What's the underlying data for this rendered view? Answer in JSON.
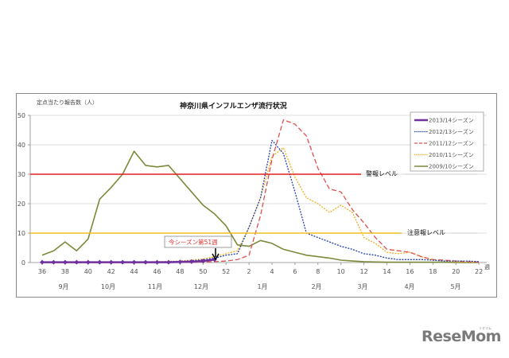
{
  "chart_data": {
    "type": "line",
    "title": "神奈川県インフルエンザ流行状況",
    "ylabel": "定点当たり報告数（人）",
    "xlabel": "週",
    "ylim": [
      0,
      50
    ],
    "yticks": [
      0,
      10,
      20,
      30,
      40,
      50
    ],
    "grid": true,
    "legend_position": "upper right",
    "x": [
      36,
      37,
      38,
      39,
      40,
      41,
      42,
      43,
      44,
      45,
      46,
      47,
      48,
      49,
      50,
      51,
      52,
      1,
      2,
      3,
      4,
      5,
      6,
      7,
      8,
      9,
      10,
      11,
      12,
      13,
      14,
      15,
      16,
      17,
      18,
      19,
      20,
      21,
      22
    ],
    "xtick_labels": [
      "36",
      "38",
      "40",
      "42",
      "44",
      "46",
      "48",
      "50",
      "52",
      "2",
      "4",
      "6",
      "8",
      "10",
      "12",
      "14",
      "16",
      "18",
      "20",
      "22"
    ],
    "month_labels": [
      "9月",
      "10月",
      "11月",
      "12月",
      "1月",
      "2月",
      "3月",
      "4月",
      "5月"
    ],
    "series": [
      {
        "name": "2013/14シーズン",
        "color": "#7030a0",
        "style": "solid-thick-markers",
        "values": [
          0.1,
          0.1,
          0.1,
          0.1,
          0.1,
          0.1,
          0.1,
          0.1,
          0.1,
          0.1,
          0.1,
          0.1,
          0.2,
          0.3,
          0.5,
          1.0
        ]
      },
      {
        "name": "2012/13シーズン",
        "color": "#2040b0",
        "style": "dotted",
        "values": [
          0.1,
          0.1,
          0.1,
          0.1,
          0.1,
          0.1,
          0.1,
          0.1,
          0.1,
          0.2,
          0.2,
          0.3,
          0.4,
          0.6,
          0.9,
          1.5,
          2.5,
          3.0,
          12.0,
          22.0,
          41.5,
          37.0,
          24.0,
          10.0,
          8.5,
          7.0,
          5.5,
          4.5,
          3.0,
          2.5,
          1.5,
          1.0,
          1.0,
          1.0,
          0.8,
          0.5,
          0.5,
          0.5,
          0.3
        ]
      },
      {
        "name": "2011/12シーズン",
        "color": "#e05050",
        "style": "dashed",
        "values": [
          0.0,
          0.0,
          0.0,
          0.0,
          0.0,
          0.0,
          0.0,
          0.0,
          0.0,
          0.0,
          0.0,
          0.1,
          0.1,
          0.1,
          0.2,
          0.3,
          0.5,
          1.0,
          2.5,
          16.0,
          35.0,
          48.5,
          47.0,
          43.0,
          32.0,
          25.0,
          24.0,
          18.0,
          13.5,
          8.5,
          4.5,
          4.0,
          3.5,
          2.0,
          1.0,
          0.8,
          0.5,
          0.3,
          0.2
        ]
      },
      {
        "name": "2010/11シーズン",
        "color": "#f0b020",
        "style": "dotted",
        "values": [
          0.0,
          0.0,
          0.0,
          0.0,
          0.1,
          0.1,
          0.1,
          0.1,
          0.1,
          0.2,
          0.3,
          0.4,
          0.5,
          0.8,
          1.2,
          2.0,
          3.0,
          4.0,
          12.0,
          22.0,
          36.0,
          39.0,
          29.0,
          22.0,
          20.0,
          17.0,
          19.5,
          17.0,
          8.5,
          6.5,
          3.5,
          3.0,
          3.5,
          2.0,
          0.8,
          0.5,
          0.3,
          0.2,
          0.1
        ]
      },
      {
        "name": "2009/10シーズン",
        "color": "#7a8a3a",
        "style": "solid",
        "values": [
          2.5,
          4.0,
          7.0,
          4.0,
          8.0,
          21.5,
          25.5,
          30.0,
          37.8,
          33.0,
          32.5,
          33.0,
          28.5,
          24.0,
          19.5,
          16.5,
          12.5,
          6.0,
          5.5,
          7.5,
          6.5,
          4.5,
          3.5,
          2.5,
          2.0,
          1.5,
          0.8,
          0.5,
          0.3,
          0.2,
          0.1,
          0.1,
          0.1,
          0.1,
          0.1,
          0.1,
          0.0,
          0.0,
          0.0
        ]
      }
    ],
    "reference_lines": [
      {
        "name": "警報レベル",
        "value": 30,
        "color": "#e02020"
      },
      {
        "name": "注意報レベル",
        "value": 10,
        "color": "#f0c020"
      }
    ],
    "annotations": [
      {
        "text": "今シーズン第51週",
        "x": 51,
        "y": 1.0
      }
    ]
  },
  "labels": {
    "title": "神奈川県インフルエンザ流行状況",
    "ylabel": "定点当たり報告数（人）",
    "week_unit": "週",
    "alarm_level": "警報レベル",
    "warning_level": "注意報レベル",
    "annotation": "今シーズン第51週"
  },
  "legend": [
    {
      "label": "2013/14シーズン",
      "color": "#7030a0"
    },
    {
      "label": "2012/13シーズン",
      "color": "#2040b0"
    },
    {
      "label": "2011/12シーズン",
      "color": "#e05050"
    },
    {
      "label": "2010/11シーズン",
      "color": "#f0b020"
    },
    {
      "label": "2009/10シーズン",
      "color": "#7a8a3a"
    }
  ],
  "watermark": {
    "brand": "ReseMom",
    "kana": "リセマム"
  }
}
